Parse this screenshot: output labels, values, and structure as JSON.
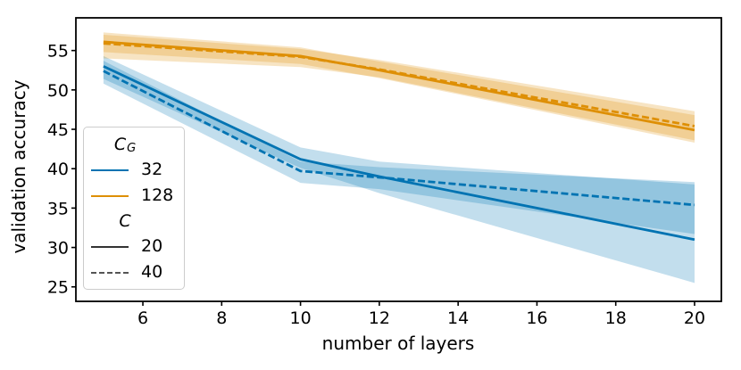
{
  "chart_data": {
    "type": "line",
    "title": "",
    "xlabel": "number of layers",
    "ylabel": "validation accuracy",
    "x": [
      5,
      10,
      12,
      20
    ],
    "xlim": [
      4.3,
      20.68
    ],
    "ylim": [
      23.16,
      59.15
    ],
    "xticks": [
      "6",
      "8",
      "10",
      "12",
      "14",
      "16",
      "18",
      "20"
    ],
    "yticks": [
      "25",
      "30",
      "35",
      "40",
      "45",
      "50",
      "55"
    ],
    "grid": false,
    "colors": {
      "blue": "#0173b2",
      "orange": "#de8f05",
      "axis": "#000000"
    },
    "series": [
      {
        "name": "CG=32 C=20",
        "cg": "32",
        "c": "20",
        "color": "#0173b2",
        "line_style": "solid",
        "values": [
          53.0,
          41.2,
          39.0,
          31.0
        ],
        "band_low": [
          51.4,
          40.1,
          36.9,
          25.5
        ],
        "band_high": [
          54.3,
          42.7,
          40.9,
          38.0
        ]
      },
      {
        "name": "CG=32 C=40",
        "cg": "32",
        "c": "40",
        "color": "#0173b2",
        "line_style": "dashed",
        "values": [
          52.4,
          39.7,
          38.9,
          35.4
        ],
        "band_low": [
          50.8,
          38.2,
          37.4,
          31.7
        ],
        "band_high": [
          53.7,
          40.9,
          40.2,
          38.3
        ]
      },
      {
        "name": "CG=128 C=20",
        "cg": "128",
        "c": "20",
        "color": "#de8f05",
        "line_style": "solid",
        "values": [
          56.1,
          54.3,
          52.5,
          44.9
        ],
        "band_low": [
          54.8,
          53.3,
          51.5,
          43.3
        ],
        "band_high": [
          57.3,
          55.4,
          53.6,
          46.8
        ]
      },
      {
        "name": "CG=128 C=40",
        "cg": "128",
        "c": "40",
        "color": "#de8f05",
        "line_style": "dashed",
        "values": [
          55.9,
          54.2,
          52.6,
          45.4
        ],
        "band_low": [
          54.0,
          52.9,
          51.6,
          43.6
        ],
        "band_high": [
          57.0,
          55.2,
          53.8,
          47.3
        ]
      }
    ],
    "legend": {
      "position": "lower-left-inside",
      "groups": [
        {
          "title_main": "C",
          "title_sub": "G",
          "items": [
            {
              "label": "32",
              "color": "#0173b2",
              "line_style": "solid"
            },
            {
              "label": "128",
              "color": "#de8f05",
              "line_style": "solid"
            }
          ]
        },
        {
          "title_main": "C",
          "title_sub": "",
          "items": [
            {
              "label": "20",
              "color": "#333333",
              "line_style": "solid"
            },
            {
              "label": "40",
              "color": "#555555",
              "line_style": "dashed"
            }
          ]
        }
      ]
    }
  }
}
